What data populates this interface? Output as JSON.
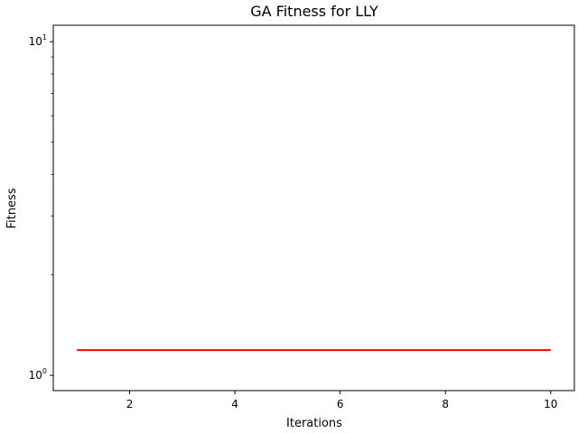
{
  "chart_data": {
    "type": "line",
    "title": "GA Fitness for LLY",
    "xlabel": "Iterations",
    "ylabel": "Fitness",
    "yscale": "log",
    "xlim": [
      0.55,
      10.45
    ],
    "ylim": [
      0.9,
      11.2
    ],
    "x_ticks": [
      2,
      4,
      6,
      8,
      10
    ],
    "x_tick_labels": [
      "2",
      "4",
      "6",
      "8",
      "10"
    ],
    "y_major_ticks": [
      1,
      10
    ],
    "y_tick_labels": [
      {
        "base": "10",
        "exp": "0"
      },
      {
        "base": "10",
        "exp": "1"
      }
    ],
    "y_minor_ticks": [
      2,
      3,
      4,
      5,
      6,
      7,
      8,
      9
    ],
    "grid": false,
    "series": [
      {
        "color": "#ff0000",
        "x": [
          1,
          2,
          3,
          4,
          5,
          6,
          7,
          8,
          9,
          10
        ],
        "y": [
          1.19,
          1.19,
          1.19,
          1.19,
          1.19,
          1.19,
          1.19,
          1.19,
          1.19,
          1.19
        ]
      }
    ]
  }
}
